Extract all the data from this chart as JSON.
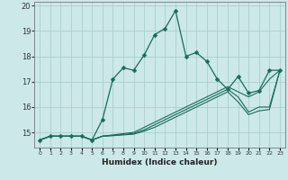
{
  "xlabel": "Humidex (Indice chaleur)",
  "bg_color": "#cce8e8",
  "grid_color": "#aacfcf",
  "line_color": "#1a6b5a",
  "xlim": [
    -0.5,
    23.5
  ],
  "ylim": [
    14.4,
    20.15
  ],
  "yticks": [
    15,
    16,
    17,
    18,
    19,
    20
  ],
  "xticks": [
    0,
    1,
    2,
    3,
    4,
    5,
    6,
    7,
    8,
    9,
    10,
    11,
    12,
    13,
    14,
    15,
    16,
    17,
    18,
    19,
    20,
    21,
    22,
    23
  ],
  "line1_x": [
    0,
    1,
    2,
    3,
    4,
    5,
    6,
    7,
    8,
    9,
    10,
    11,
    12,
    13,
    14,
    15,
    16,
    17,
    18,
    19,
    20,
    21,
    22,
    23
  ],
  "line1_y": [
    14.7,
    14.85,
    14.85,
    14.85,
    14.85,
    14.7,
    15.5,
    17.1,
    17.55,
    17.45,
    18.05,
    18.85,
    19.1,
    19.8,
    18.0,
    18.15,
    17.8,
    17.1,
    16.7,
    17.2,
    16.55,
    16.65,
    17.45,
    17.45
  ],
  "line2_x": [
    0,
    1,
    2,
    3,
    4,
    5,
    6,
    7,
    8,
    9,
    10,
    11,
    12,
    13,
    14,
    15,
    16,
    17,
    18,
    19,
    20,
    21,
    22,
    23
  ],
  "line2_y": [
    14.7,
    14.85,
    14.85,
    14.85,
    14.85,
    14.7,
    14.85,
    14.9,
    14.95,
    15.0,
    15.2,
    15.4,
    15.6,
    15.8,
    16.0,
    16.2,
    16.4,
    16.6,
    16.8,
    16.6,
    16.4,
    16.6,
    17.1,
    17.45
  ],
  "line3_x": [
    0,
    1,
    2,
    3,
    4,
    5,
    6,
    7,
    8,
    9,
    10,
    11,
    12,
    13,
    14,
    15,
    16,
    17,
    18,
    19,
    20,
    21,
    22,
    23
  ],
  "line3_y": [
    14.7,
    14.85,
    14.85,
    14.85,
    14.85,
    14.7,
    14.85,
    14.88,
    14.92,
    14.96,
    15.1,
    15.3,
    15.5,
    15.7,
    15.9,
    16.1,
    16.3,
    16.5,
    16.7,
    16.4,
    15.8,
    16.0,
    16.0,
    17.45
  ],
  "line4_x": [
    0,
    1,
    2,
    3,
    4,
    5,
    6,
    7,
    8,
    9,
    10,
    11,
    12,
    13,
    14,
    15,
    16,
    17,
    18,
    19,
    20,
    21,
    22,
    23
  ],
  "line4_y": [
    14.7,
    14.85,
    14.85,
    14.85,
    14.85,
    14.7,
    14.85,
    14.87,
    14.9,
    14.93,
    15.05,
    15.2,
    15.4,
    15.6,
    15.8,
    16.0,
    16.2,
    16.4,
    16.6,
    16.2,
    15.7,
    15.85,
    15.9,
    17.45
  ]
}
